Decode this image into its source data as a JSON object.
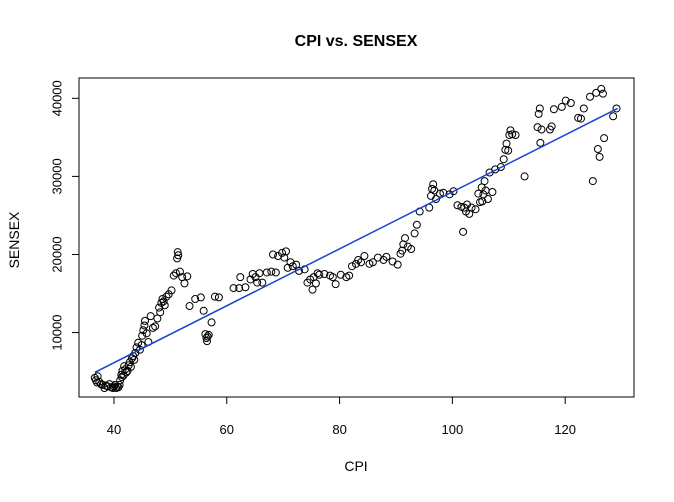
{
  "chart_data": {
    "type": "scatter",
    "title": "CPI vs. SENSEX",
    "xlabel": "CPI",
    "ylabel": "SENSEX",
    "xlim": [
      33.8,
      132.2
    ],
    "ylim": [
      1750,
      42600
    ],
    "x_ticks": [
      40,
      60,
      80,
      100,
      120
    ],
    "y_ticks": [
      10000,
      20000,
      30000,
      40000
    ],
    "x_tick_labels": [
      "40",
      "60",
      "80",
      "100",
      "120"
    ],
    "y_tick_labels": [
      "10000",
      "20000",
      "30000",
      "40000"
    ],
    "grid": false,
    "legend": "none",
    "point_color": "#000000",
    "line_color": "#1a3fd6",
    "series": [
      {
        "marker": "open-circle",
        "points": [
          [
            36.6,
            4200
          ],
          [
            36.8,
            3900
          ],
          [
            37.0,
            3600
          ],
          [
            37.1,
            4400
          ],
          [
            37.4,
            3700
          ],
          [
            37.7,
            3400
          ],
          [
            38.0,
            3300
          ],
          [
            38.3,
            2900
          ],
          [
            38.6,
            3200
          ],
          [
            38.9,
            3100
          ],
          [
            39.2,
            3400
          ],
          [
            39.5,
            3000
          ],
          [
            39.8,
            2900
          ],
          [
            40.0,
            3100
          ],
          [
            40.2,
            3300
          ],
          [
            40.4,
            2900
          ],
          [
            40.6,
            3100
          ],
          [
            40.8,
            3000
          ],
          [
            41.0,
            3300
          ],
          [
            41.1,
            3900
          ],
          [
            41.3,
            4600
          ],
          [
            41.4,
            4300
          ],
          [
            41.5,
            5100
          ],
          [
            41.7,
            4500
          ],
          [
            41.8,
            5700
          ],
          [
            42.0,
            5300
          ],
          [
            42.2,
            4900
          ],
          [
            42.4,
            5100
          ],
          [
            42.6,
            5800
          ],
          [
            42.8,
            6200
          ],
          [
            43.0,
            5600
          ],
          [
            43.2,
            6700
          ],
          [
            43.4,
            7000
          ],
          [
            43.6,
            6500
          ],
          [
            43.8,
            7400
          ],
          [
            44.0,
            8100
          ],
          [
            44.3,
            8700
          ],
          [
            44.6,
            7800
          ],
          [
            44.9,
            8400
          ],
          [
            45.0,
            9600
          ],
          [
            45.2,
            10300
          ],
          [
            45.4,
            10900
          ],
          [
            45.5,
            11500
          ],
          [
            45.8,
            9900
          ],
          [
            46.1,
            8800
          ],
          [
            46.5,
            12100
          ],
          [
            46.9,
            10600
          ],
          [
            47.3,
            10800
          ],
          [
            47.7,
            11800
          ],
          [
            48.0,
            13200
          ],
          [
            48.2,
            12600
          ],
          [
            48.4,
            13800
          ],
          [
            48.6,
            14300
          ],
          [
            48.8,
            14000
          ],
          [
            49.0,
            13500
          ],
          [
            49.3,
            14600
          ],
          [
            49.7,
            14900
          ],
          [
            50.2,
            15400
          ],
          [
            50.6,
            17300
          ],
          [
            51.0,
            17600
          ],
          [
            51.2,
            19500
          ],
          [
            51.3,
            20300
          ],
          [
            51.4,
            19900
          ],
          [
            51.7,
            17800
          ],
          [
            52.1,
            17100
          ],
          [
            52.5,
            16300
          ],
          [
            53.0,
            17200
          ],
          [
            53.4,
            13400
          ],
          [
            54.4,
            14300
          ],
          [
            55.4,
            14500
          ],
          [
            55.9,
            12800
          ],
          [
            56.2,
            9800
          ],
          [
            56.4,
            9300
          ],
          [
            56.5,
            8900
          ],
          [
            56.6,
            9500
          ],
          [
            56.8,
            9700
          ],
          [
            57.3,
            11300
          ],
          [
            57.9,
            14600
          ],
          [
            58.6,
            14500
          ],
          [
            61.2,
            15700
          ],
          [
            62.2,
            15700
          ],
          [
            62.4,
            17100
          ],
          [
            63.3,
            15800
          ],
          [
            64.2,
            16800
          ],
          [
            64.6,
            17500
          ],
          [
            65.1,
            17100
          ],
          [
            65.4,
            16400
          ],
          [
            65.8,
            17600
          ],
          [
            66.3,
            16400
          ],
          [
            67.1,
            17700
          ],
          [
            67.9,
            17800
          ],
          [
            68.2,
            20000
          ],
          [
            68.7,
            17700
          ],
          [
            69.1,
            19800
          ],
          [
            69.8,
            20200
          ],
          [
            70.2,
            19600
          ],
          [
            70.5,
            20400
          ],
          [
            70.8,
            18300
          ],
          [
            71.3,
            19000
          ],
          [
            71.7,
            18500
          ],
          [
            72.3,
            18700
          ],
          [
            72.8,
            17900
          ],
          [
            73.8,
            18100
          ],
          [
            74.3,
            16400
          ],
          [
            74.8,
            16800
          ],
          [
            75.2,
            15500
          ],
          [
            75.4,
            17100
          ],
          [
            75.8,
            16300
          ],
          [
            76.1,
            17600
          ],
          [
            76.4,
            17400
          ],
          [
            77.3,
            17500
          ],
          [
            78.3,
            17300
          ],
          [
            78.8,
            17100
          ],
          [
            79.3,
            16200
          ],
          [
            80.2,
            17400
          ],
          [
            81.2,
            17100
          ],
          [
            81.7,
            17300
          ],
          [
            82.2,
            18500
          ],
          [
            82.9,
            18800
          ],
          [
            83.3,
            19300
          ],
          [
            83.8,
            19000
          ],
          [
            84.4,
            19800
          ],
          [
            85.3,
            18800
          ],
          [
            85.9,
            19000
          ],
          [
            86.8,
            19600
          ],
          [
            87.8,
            19300
          ],
          [
            88.3,
            19700
          ],
          [
            89.4,
            19100
          ],
          [
            90.3,
            18700
          ],
          [
            90.8,
            20100
          ],
          [
            91.1,
            20500
          ],
          [
            91.3,
            21300
          ],
          [
            91.6,
            22100
          ],
          [
            92.1,
            21000
          ],
          [
            92.7,
            20700
          ],
          [
            93.3,
            22700
          ],
          [
            93.7,
            23800
          ],
          [
            94.2,
            25500
          ],
          [
            95.9,
            26000
          ],
          [
            96.2,
            27500
          ],
          [
            96.4,
            28400
          ],
          [
            96.6,
            29000
          ],
          [
            96.8,
            28200
          ],
          [
            97.1,
            27100
          ],
          [
            97.8,
            27800
          ],
          [
            98.4,
            27900
          ],
          [
            99.5,
            27700
          ],
          [
            100.2,
            28100
          ],
          [
            100.9,
            26300
          ],
          [
            101.6,
            26100
          ],
          [
            101.9,
            22900
          ],
          [
            102.1,
            26000
          ],
          [
            102.4,
            25500
          ],
          [
            102.6,
            26400
          ],
          [
            103.0,
            25200
          ],
          [
            103.4,
            26000
          ],
          [
            104.1,
            25800
          ],
          [
            104.6,
            27800
          ],
          [
            104.9,
            26700
          ],
          [
            105.2,
            28600
          ],
          [
            105.3,
            26800
          ],
          [
            105.5,
            27700
          ],
          [
            105.7,
            29400
          ],
          [
            105.9,
            28200
          ],
          [
            106.3,
            27100
          ],
          [
            106.6,
            30500
          ],
          [
            107.1,
            28000
          ],
          [
            107.6,
            30900
          ],
          [
            108.6,
            31200
          ],
          [
            109.1,
            32200
          ],
          [
            109.4,
            33400
          ],
          [
            109.6,
            34200
          ],
          [
            109.9,
            33300
          ],
          [
            110.1,
            35300
          ],
          [
            110.3,
            35900
          ],
          [
            110.6,
            35400
          ],
          [
            111.2,
            35300
          ],
          [
            112.8,
            30000
          ],
          [
            115.1,
            36300
          ],
          [
            115.3,
            38000
          ],
          [
            115.5,
            38700
          ],
          [
            115.6,
            34300
          ],
          [
            115.8,
            36000
          ],
          [
            117.3,
            36000
          ],
          [
            117.6,
            36400
          ],
          [
            118.0,
            38600
          ],
          [
            119.4,
            38900
          ],
          [
            120.1,
            39700
          ],
          [
            121.0,
            39400
          ],
          [
            122.3,
            37500
          ],
          [
            122.8,
            37400
          ],
          [
            123.3,
            38700
          ],
          [
            124.4,
            40200
          ],
          [
            124.9,
            29400
          ],
          [
            125.5,
            40700
          ],
          [
            125.8,
            33500
          ],
          [
            126.1,
            32500
          ],
          [
            126.4,
            41200
          ],
          [
            126.7,
            40600
          ],
          [
            126.9,
            34900
          ],
          [
            128.5,
            37700
          ],
          [
            129.1,
            38700
          ]
        ]
      }
    ],
    "regression_line": {
      "x": [
        36.6,
        129.3
      ],
      "y": [
        4900,
        38700
      ]
    }
  }
}
